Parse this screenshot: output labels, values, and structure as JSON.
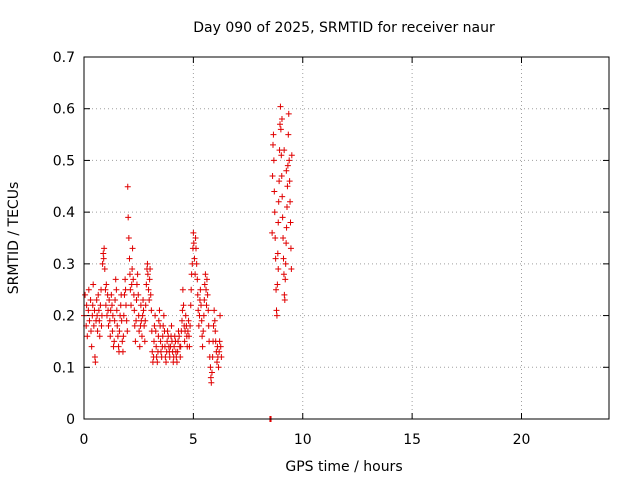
{
  "chart_data": {
    "type": "scatter",
    "title": "Day 090 of 2025, SRMTID for receiver naur",
    "xlabel": "GPS time / hours",
    "ylabel": "SRMTID / TECUs",
    "xlim": [
      0,
      24
    ],
    "ylim": [
      0,
      0.7
    ],
    "xticks": [
      0,
      5,
      10,
      15,
      20
    ],
    "yticks": [
      0,
      0.1,
      0.2,
      0.3,
      0.4,
      0.5,
      0.6,
      0.7
    ],
    "xtick_labels": [
      "0",
      "5",
      "10",
      "15",
      "20"
    ],
    "ytick_labels": [
      "0",
      "0.1",
      "0.2",
      "0.3",
      "0.4",
      "0.5",
      "0.6",
      "0.7"
    ],
    "grid": true,
    "marker": "+",
    "color": "#e00000",
    "series": [
      {
        "name": "SRMTID",
        "points": [
          [
            0.0,
            0.2
          ],
          [
            0.05,
            0.24
          ],
          [
            0.1,
            0.18
          ],
          [
            0.12,
            0.22
          ],
          [
            0.15,
            0.16
          ],
          [
            0.2,
            0.21
          ],
          [
            0.22,
            0.25
          ],
          [
            0.25,
            0.19
          ],
          [
            0.3,
            0.23
          ],
          [
            0.32,
            0.17
          ],
          [
            0.35,
            0.14
          ],
          [
            0.38,
            0.2
          ],
          [
            0.4,
            0.22
          ],
          [
            0.42,
            0.26
          ],
          [
            0.45,
            0.18
          ],
          [
            0.48,
            0.21
          ],
          [
            0.5,
            0.12
          ],
          [
            0.52,
            0.11
          ],
          [
            0.55,
            0.19
          ],
          [
            0.58,
            0.23
          ],
          [
            0.6,
            0.2
          ],
          [
            0.62,
            0.17
          ],
          [
            0.65,
            0.24
          ],
          [
            0.68,
            0.21
          ],
          [
            0.7,
            0.19
          ],
          [
            0.72,
            0.16
          ],
          [
            0.75,
            0.22
          ],
          [
            0.78,
            0.25
          ],
          [
            0.8,
            0.18
          ],
          [
            0.82,
            0.2
          ],
          [
            0.85,
            0.3
          ],
          [
            0.88,
            0.32
          ],
          [
            0.9,
            0.31
          ],
          [
            0.92,
            0.33
          ],
          [
            0.95,
            0.29
          ],
          [
            0.98,
            0.25
          ],
          [
            1.0,
            0.22
          ],
          [
            1.02,
            0.26
          ],
          [
            1.05,
            0.2
          ],
          [
            1.08,
            0.24
          ],
          [
            1.1,
            0.21
          ],
          [
            1.12,
            0.18
          ],
          [
            1.15,
            0.23
          ],
          [
            1.18,
            0.19
          ],
          [
            1.2,
            0.16
          ],
          [
            1.22,
            0.21
          ],
          [
            1.25,
            0.24
          ],
          [
            1.28,
            0.22
          ],
          [
            1.3,
            0.17
          ],
          [
            1.32,
            0.2
          ],
          [
            1.35,
            0.14
          ],
          [
            1.38,
            0.15
          ],
          [
            1.4,
            0.19
          ],
          [
            1.42,
            0.23
          ],
          [
            1.45,
            0.27
          ],
          [
            1.48,
            0.25
          ],
          [
            1.5,
            0.21
          ],
          [
            1.52,
            0.18
          ],
          [
            1.55,
            0.16
          ],
          [
            1.58,
            0.14
          ],
          [
            1.6,
            0.13
          ],
          [
            1.62,
            0.17
          ],
          [
            1.65,
            0.2
          ],
          [
            1.68,
            0.22
          ],
          [
            1.7,
            0.24
          ],
          [
            1.72,
            0.19
          ],
          [
            1.75,
            0.15
          ],
          [
            1.78,
            0.13
          ],
          [
            1.8,
            0.16
          ],
          [
            1.82,
            0.2
          ],
          [
            1.85,
            0.24
          ],
          [
            1.88,
            0.27
          ],
          [
            1.9,
            0.25
          ],
          [
            1.92,
            0.22
          ],
          [
            1.95,
            0.19
          ],
          [
            1.98,
            0.17
          ],
          [
            2.0,
            0.449
          ],
          [
            2.02,
            0.39
          ],
          [
            2.05,
            0.35
          ],
          [
            2.08,
            0.31
          ],
          [
            2.1,
            0.28
          ],
          [
            2.12,
            0.25
          ],
          [
            2.15,
            0.22
          ],
          [
            2.18,
            0.26
          ],
          [
            2.2,
            0.29
          ],
          [
            2.22,
            0.33
          ],
          [
            2.25,
            0.27
          ],
          [
            2.28,
            0.24
          ],
          [
            2.3,
            0.21
          ],
          [
            2.32,
            0.18
          ],
          [
            2.35,
            0.15
          ],
          [
            2.38,
            0.19
          ],
          [
            2.4,
            0.23
          ],
          [
            2.42,
            0.26
          ],
          [
            2.45,
            0.28
          ],
          [
            2.48,
            0.24
          ],
          [
            2.5,
            0.2
          ],
          [
            2.52,
            0.17
          ],
          [
            2.55,
            0.14
          ],
          [
            2.58,
            0.18
          ],
          [
            2.6,
            0.22
          ],
          [
            2.62,
            0.19
          ],
          [
            2.65,
            0.16
          ],
          [
            2.68,
            0.2
          ],
          [
            2.7,
            0.23
          ],
          [
            2.72,
            0.21
          ],
          [
            2.75,
            0.18
          ],
          [
            2.78,
            0.15
          ],
          [
            2.8,
            0.19
          ],
          [
            2.82,
            0.22
          ],
          [
            2.85,
            0.26
          ],
          [
            2.88,
            0.29
          ],
          [
            2.9,
            0.3
          ],
          [
            2.92,
            0.28
          ],
          [
            2.95,
            0.25
          ],
          [
            2.98,
            0.23
          ],
          [
            3.0,
            0.27
          ],
          [
            3.02,
            0.29
          ],
          [
            3.05,
            0.24
          ],
          [
            3.08,
            0.21
          ],
          [
            3.1,
            0.17
          ],
          [
            3.12,
            0.13
          ],
          [
            3.15,
            0.11
          ],
          [
            3.18,
            0.12
          ],
          [
            3.2,
            0.15
          ],
          [
            3.22,
            0.18
          ],
          [
            3.25,
            0.2
          ],
          [
            3.28,
            0.17
          ],
          [
            3.3,
            0.14
          ],
          [
            3.32,
            0.12
          ],
          [
            3.35,
            0.11
          ],
          [
            3.38,
            0.13
          ],
          [
            3.4,
            0.16
          ],
          [
            3.42,
            0.19
          ],
          [
            3.45,
            0.21
          ],
          [
            3.48,
            0.18
          ],
          [
            3.5,
            0.15
          ],
          [
            3.52,
            0.13
          ],
          [
            3.55,
            0.12
          ],
          [
            3.58,
            0.14
          ],
          [
            3.6,
            0.16
          ],
          [
            3.62,
            0.18
          ],
          [
            3.65,
            0.2
          ],
          [
            3.68,
            0.17
          ],
          [
            3.7,
            0.14
          ],
          [
            3.72,
            0.12
          ],
          [
            3.75,
            0.11
          ],
          [
            3.78,
            0.13
          ],
          [
            3.8,
            0.15
          ],
          [
            3.82,
            0.17
          ],
          [
            3.85,
            0.16
          ],
          [
            3.88,
            0.14
          ],
          [
            3.9,
            0.13
          ],
          [
            3.92,
            0.12
          ],
          [
            3.95,
            0.14
          ],
          [
            3.98,
            0.16
          ],
          [
            4.0,
            0.18
          ],
          [
            4.02,
            0.15
          ],
          [
            4.05,
            0.13
          ],
          [
            4.08,
            0.11
          ],
          [
            4.1,
            0.12
          ],
          [
            4.12,
            0.14
          ],
          [
            4.15,
            0.16
          ],
          [
            4.18,
            0.15
          ],
          [
            4.2,
            0.13
          ],
          [
            4.22,
            0.12
          ],
          [
            4.25,
            0.11
          ],
          [
            4.28,
            0.13
          ],
          [
            4.3,
            0.15
          ],
          [
            4.32,
            0.17
          ],
          [
            4.35,
            0.16
          ],
          [
            4.38,
            0.14
          ],
          [
            4.4,
            0.12
          ],
          [
            4.42,
            0.14
          ],
          [
            4.45,
            0.17
          ],
          [
            4.48,
            0.19
          ],
          [
            4.5,
            0.21
          ],
          [
            4.52,
            0.25
          ],
          [
            4.55,
            0.22
          ],
          [
            4.58,
            0.18
          ],
          [
            4.6,
            0.15
          ],
          [
            4.62,
            0.17
          ],
          [
            4.65,
            0.2
          ],
          [
            4.68,
            0.18
          ],
          [
            4.7,
            0.16
          ],
          [
            4.72,
            0.14
          ],
          [
            4.75,
            0.17
          ],
          [
            4.78,
            0.19
          ],
          [
            4.8,
            0.16
          ],
          [
            4.82,
            0.14
          ],
          [
            4.85,
            0.18
          ],
          [
            4.88,
            0.22
          ],
          [
            4.9,
            0.25
          ],
          [
            4.92,
            0.28
          ],
          [
            4.95,
            0.3
          ],
          [
            4.98,
            0.33
          ],
          [
            5.0,
            0.36
          ],
          [
            5.02,
            0.34
          ],
          [
            5.05,
            0.31
          ],
          [
            5.08,
            0.28
          ],
          [
            5.1,
            0.35
          ],
          [
            5.12,
            0.33
          ],
          [
            5.15,
            0.3
          ],
          [
            5.18,
            0.27
          ],
          [
            5.2,
            0.24
          ],
          [
            5.22,
            0.21
          ],
          [
            5.25,
            0.18
          ],
          [
            5.28,
            0.2
          ],
          [
            5.3,
            0.23
          ],
          [
            5.32,
            0.25
          ],
          [
            5.35,
            0.22
          ],
          [
            5.38,
            0.19
          ],
          [
            5.4,
            0.16
          ],
          [
            5.42,
            0.14
          ],
          [
            5.45,
            0.17
          ],
          [
            5.48,
            0.2
          ],
          [
            5.5,
            0.23
          ],
          [
            5.52,
            0.26
          ],
          [
            5.55,
            0.28
          ],
          [
            5.58,
            0.25
          ],
          [
            5.6,
            0.22
          ],
          [
            5.62,
            0.27
          ],
          [
            5.65,
            0.24
          ],
          [
            5.68,
            0.21
          ],
          [
            5.7,
            0.18
          ],
          [
            5.72,
            0.15
          ],
          [
            5.75,
            0.12
          ],
          [
            5.78,
            0.1
          ],
          [
            5.8,
            0.08
          ],
          [
            5.82,
            0.07
          ],
          [
            5.85,
            0.09
          ],
          [
            5.88,
            0.12
          ],
          [
            5.9,
            0.15
          ],
          [
            5.92,
            0.18
          ],
          [
            5.95,
            0.21
          ],
          [
            5.98,
            0.19
          ],
          [
            6.0,
            0.17
          ],
          [
            6.02,
            0.15
          ],
          [
            6.05,
            0.13
          ],
          [
            6.08,
            0.11
          ],
          [
            6.1,
            0.14
          ],
          [
            6.12,
            0.12
          ],
          [
            6.15,
            0.1
          ],
          [
            6.18,
            0.13
          ],
          [
            6.2,
            0.15
          ],
          [
            6.22,
            0.2
          ],
          [
            6.25,
            0.14
          ],
          [
            6.28,
            0.12
          ],
          [
            8.5,
            0.0
          ],
          [
            8.52,
            0.0
          ],
          [
            8.55,
            0.0
          ],
          [
            8.6,
            0.36
          ],
          [
            8.62,
            0.47
          ],
          [
            8.64,
            0.53
          ],
          [
            8.66,
            0.55
          ],
          [
            8.68,
            0.5
          ],
          [
            8.7,
            0.44
          ],
          [
            8.72,
            0.4
          ],
          [
            8.74,
            0.35
          ],
          [
            8.76,
            0.31
          ],
          [
            8.78,
            0.25
          ],
          [
            8.8,
            0.21
          ],
          [
            8.82,
            0.2
          ],
          [
            8.84,
            0.26
          ],
          [
            8.86,
            0.32
          ],
          [
            8.88,
            0.38
          ],
          [
            8.9,
            0.42
          ],
          [
            8.92,
            0.46
          ],
          [
            8.94,
            0.52
          ],
          [
            8.96,
            0.57
          ],
          [
            8.98,
            0.604
          ],
          [
            9.0,
            0.56
          ],
          [
            9.02,
            0.51
          ],
          [
            9.04,
            0.47
          ],
          [
            9.06,
            0.43
          ],
          [
            9.08,
            0.39
          ],
          [
            9.1,
            0.35
          ],
          [
            9.12,
            0.31
          ],
          [
            9.14,
            0.28
          ],
          [
            9.16,
            0.24
          ],
          [
            9.18,
            0.23
          ],
          [
            9.2,
            0.27
          ],
          [
            9.22,
            0.3
          ],
          [
            9.24,
            0.34
          ],
          [
            9.26,
            0.37
          ],
          [
            9.28,
            0.41
          ],
          [
            9.3,
            0.45
          ],
          [
            9.32,
            0.49
          ],
          [
            9.34,
            0.55
          ],
          [
            9.36,
            0.59
          ],
          [
            9.38,
            0.5
          ],
          [
            9.4,
            0.46
          ],
          [
            9.42,
            0.42
          ],
          [
            9.44,
            0.38
          ],
          [
            9.46,
            0.33
          ],
          [
            9.48,
            0.29
          ],
          [
            9.5,
            0.51
          ],
          [
            8.88,
            0.29
          ],
          [
            9.05,
            0.58
          ],
          [
            9.15,
            0.52
          ],
          [
            9.25,
            0.48
          ]
        ]
      }
    ]
  }
}
